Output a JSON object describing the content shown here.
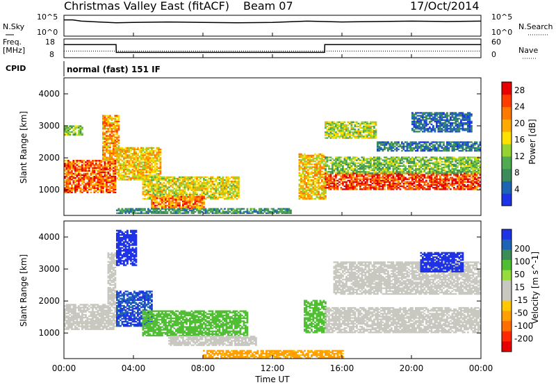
{
  "header": {
    "station": "Christmas Valley East (fitACF)",
    "beam": "Beam 07",
    "date": "17/Oct/2014"
  },
  "labels": {
    "nsky": "N.Sky",
    "nsearch": "N.Search",
    "freq_line1": "Freq.",
    "freq_line2": "[MHz]",
    "nave": "Nave",
    "cpid": "CPID",
    "cpid_value": "normal (fast) 151 IF",
    "nsky_ticks": [
      "10^5",
      "10^0"
    ],
    "nsearch_ticks": [
      "10^5",
      "10^0"
    ],
    "freq_ticks": [
      "18",
      "8"
    ],
    "nave_ticks": [
      "60",
      "0"
    ]
  },
  "colors": {
    "power": [
      "#1e32e6",
      "#1e64b4",
      "#3c8c5a",
      "#50aa50",
      "#96d232",
      "#ffe100",
      "#ffaa00",
      "#ff7800",
      "#ff3c00",
      "#e60000"
    ],
    "velocity": [
      "#1e32e6",
      "#1e64b4",
      "#3c8c5a",
      "#50be32",
      "#96dc3c",
      "#c8c8c0",
      "#c8c8c0",
      "#ffc800",
      "#ffa000",
      "#ff6e00",
      "#ff2800",
      "#e60000"
    ]
  },
  "chart_data": [
    {
      "type": "line",
      "panel": "N.Sky / N.Search",
      "x_range": [
        "00:00",
        "24:00"
      ],
      "series": [
        {
          "name": "N.Sky",
          "style": "solid",
          "x": [
            0,
            0.5,
            1,
            2,
            3,
            4,
            6,
            8,
            10,
            12,
            14,
            15,
            16,
            18,
            20,
            22,
            24
          ],
          "y_log10": [
            3.9,
            3.9,
            3.6,
            3.4,
            3.2,
            3.3,
            3.4,
            3.3,
            3.2,
            3.3,
            3.6,
            3.5,
            3.4,
            3.5,
            3.6,
            3.5,
            3.6
          ]
        }
      ]
    },
    {
      "type": "line",
      "panel": "Freq. [MHz] / Nave",
      "x_range": [
        "00:00",
        "24:00"
      ],
      "series": [
        {
          "name": "Freq. [MHz]",
          "style": "solid",
          "x": [
            0,
            3,
            3.01,
            15,
            15.01,
            24
          ],
          "y": [
            15,
            15,
            10.8,
            10.8,
            15,
            15
          ]
        },
        {
          "name": "Nave",
          "style": "dotted",
          "x": [
            0,
            24
          ],
          "y": [
            21,
            21
          ]
        }
      ]
    },
    {
      "type": "heatmap",
      "panel": "Power",
      "xlabel": "",
      "ylabel": "Slant Range [km]",
      "x_range_hours": [
        0,
        24
      ],
      "ylim": [
        200,
        4500
      ],
      "y_ticks": [
        1000,
        2000,
        3000,
        4000
      ],
      "colorbar_label": "Power [dB]",
      "colorbar_ticks": [
        4,
        8,
        12,
        16,
        20,
        24,
        28
      ],
      "colorbar_range": [
        0,
        30
      ],
      "echo_regions": [
        {
          "t0": 0.0,
          "t1": 3.0,
          "r0": 900,
          "r1": 1900,
          "value": 24
        },
        {
          "t0": 2.2,
          "t1": 3.2,
          "r0": 1900,
          "r1": 3300,
          "value": 20
        },
        {
          "t0": 0.0,
          "t1": 1.0,
          "r0": 2700,
          "r1": 3000,
          "value": 12
        },
        {
          "t0": 3.0,
          "t1": 5.5,
          "r0": 1300,
          "r1": 2300,
          "value": 18
        },
        {
          "t0": 4.5,
          "t1": 10.0,
          "r0": 700,
          "r1": 1400,
          "value": 16
        },
        {
          "t0": 5.0,
          "t1": 8.0,
          "r0": 400,
          "r1": 800,
          "value": 22
        },
        {
          "t0": 3.0,
          "t1": 13.0,
          "r0": 250,
          "r1": 400,
          "value": 8
        },
        {
          "t0": 13.5,
          "t1": 15.0,
          "r0": 700,
          "r1": 2100,
          "value": 18
        },
        {
          "t0": 15.0,
          "t1": 24.0,
          "r0": 1000,
          "r1": 1500,
          "value": 26
        },
        {
          "t0": 15.0,
          "t1": 24.0,
          "r0": 1500,
          "r1": 2000,
          "value": 12
        },
        {
          "t0": 15.0,
          "t1": 18.0,
          "r0": 2600,
          "r1": 3100,
          "value": 14
        },
        {
          "t0": 18.0,
          "t1": 24.0,
          "r0": 2200,
          "r1": 2500,
          "value": 6
        },
        {
          "t0": 20.0,
          "t1": 23.5,
          "r0": 2800,
          "r1": 3400,
          "value": 5
        }
      ]
    },
    {
      "type": "heatmap",
      "panel": "Velocity",
      "xlabel": "Time UT",
      "ylabel": "Slant Range [km]",
      "x_range_hours": [
        0,
        24
      ],
      "x_ticks": [
        "00:00",
        "04:00",
        "08:00",
        "12:00",
        "16:00",
        "20:00",
        "00:00"
      ],
      "ylim": [
        200,
        4500
      ],
      "y_ticks": [
        1000,
        2000,
        3000,
        4000
      ],
      "colorbar_label": "Velocity [m s^-1]",
      "colorbar_ticks": [
        200,
        100,
        50,
        15,
        -15,
        -50,
        -100,
        -200
      ],
      "echo_regions": [
        {
          "t0": 0.0,
          "t1": 3.0,
          "r0": 1100,
          "r1": 1900,
          "value": 0
        },
        {
          "t0": 2.5,
          "t1": 3.0,
          "r0": 1900,
          "r1": 3500,
          "value": 0
        },
        {
          "t0": 3.0,
          "t1": 5.0,
          "r0": 1200,
          "r1": 2300,
          "value": 150
        },
        {
          "t0": 3.0,
          "t1": 4.2,
          "r0": 3100,
          "r1": 4200,
          "value": 200
        },
        {
          "t0": 4.5,
          "t1": 10.5,
          "r0": 900,
          "r1": 1700,
          "value": 40
        },
        {
          "t0": 6.0,
          "t1": 11.0,
          "r0": 600,
          "r1": 900,
          "value": 0
        },
        {
          "t0": 8.0,
          "t1": 16.0,
          "r0": 200,
          "r1": 450,
          "value": -60
        },
        {
          "t0": 13.8,
          "t1": 15.0,
          "r0": 1000,
          "r1": 2000,
          "value": 40
        },
        {
          "t0": 15.0,
          "t1": 24.0,
          "r0": 1000,
          "r1": 1800,
          "value": 0
        },
        {
          "t0": 15.5,
          "t1": 24.0,
          "r0": 2200,
          "r1": 3200,
          "value": 0
        },
        {
          "t0": 20.5,
          "t1": 23.0,
          "r0": 2900,
          "r1": 3500,
          "value": 200
        }
      ]
    }
  ]
}
